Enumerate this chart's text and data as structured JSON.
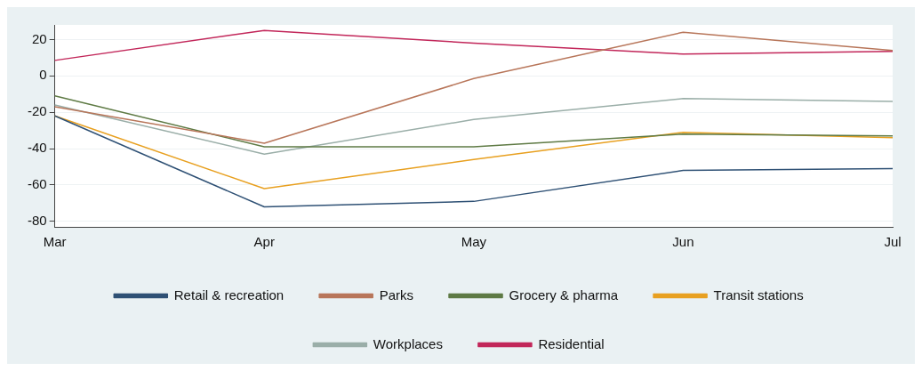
{
  "chart_data": {
    "type": "line",
    "categories": [
      "Mar",
      "Apr",
      "May",
      "Jun",
      "Jul"
    ],
    "series": [
      {
        "name": "Retail & recreation",
        "color": "#2f5175",
        "values": [
          -22,
          -72,
          -69,
          -52,
          -51
        ]
      },
      {
        "name": "Parks",
        "color": "#b8765a",
        "values": [
          -17,
          -37,
          -1.5,
          24,
          14
        ]
      },
      {
        "name": "Grocery & pharma",
        "color": "#5e7a44",
        "values": [
          -11,
          -39,
          -39,
          -32,
          -33
        ]
      },
      {
        "name": "Transit stations",
        "color": "#e8a020",
        "values": [
          -22,
          -62,
          -46,
          -31,
          -34
        ]
      },
      {
        "name": "Workplaces",
        "color": "#9aaea8",
        "values": [
          -16,
          -43,
          -24,
          -12.5,
          -14
        ]
      },
      {
        "name": "Residential",
        "color": "#c2275a",
        "values": [
          8.5,
          25,
          18,
          12,
          13.5
        ]
      }
    ],
    "ylim": [
      -83,
      28
    ],
    "yticks": [
      -80,
      -60,
      -40,
      -20,
      0,
      20
    ],
    "grid": "y",
    "legend": "bottom",
    "marker": "none",
    "line_style": "solid"
  }
}
